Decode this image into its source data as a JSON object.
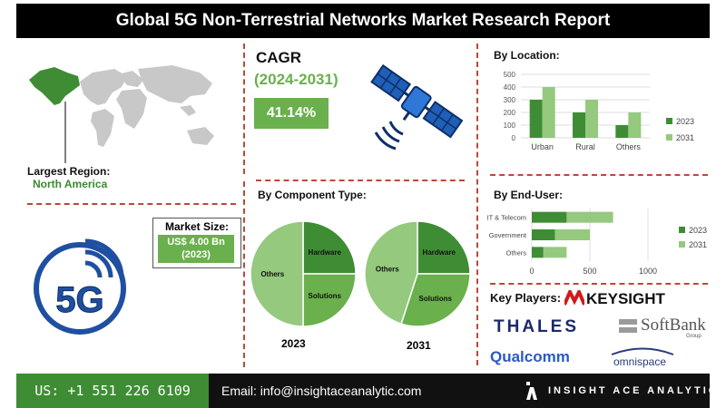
{
  "header": {
    "title": "Global 5G Non-Terrestrial Networks Market Research Report"
  },
  "region": {
    "label": "Largest Region:",
    "value": "North America"
  },
  "cagr": {
    "label": "CAGR",
    "period": "(2024-2031)",
    "value": "41.14%"
  },
  "market_size": {
    "label": "Market Size:",
    "value_line1": "US$ 4.00 Bn",
    "value_line2": "(2023)"
  },
  "fiveg_logo_text": "5G",
  "colors": {
    "dark_green": "#3e8d34",
    "light_green": "#94c97e",
    "mid_green": "#6ab04c",
    "dashed_red": "#b84a3a"
  },
  "chart_data": [
    {
      "type": "bar",
      "title": "By Location:",
      "categories": [
        "Urban",
        "Rural",
        "Others"
      ],
      "series": [
        {
          "name": "2023",
          "values": [
            300,
            200,
            100
          ]
        },
        {
          "name": "2031",
          "values": [
            400,
            300,
            200
          ]
        }
      ],
      "ylim": [
        0,
        500
      ],
      "yticks": [
        "0",
        "100",
        "200",
        "300",
        "400",
        "500"
      ],
      "legend": "right"
    },
    {
      "type": "bar",
      "orientation": "horizontal",
      "title": "By End-User:",
      "categories": [
        "IT & Telecom",
        "Government",
        "Others"
      ],
      "series": [
        {
          "name": "2023",
          "values": [
            300,
            200,
            100
          ]
        },
        {
          "name": "2031",
          "values": [
            700,
            500,
            300
          ]
        }
      ],
      "xlim": [
        0,
        1000
      ],
      "xticks": [
        "0",
        "500",
        "1000"
      ],
      "legend": "right"
    },
    {
      "type": "pie",
      "title": "By Component Type:",
      "year": "2023",
      "slices": [
        {
          "label": "Hardware",
          "value": 25
        },
        {
          "label": "Solutions",
          "value": 25
        },
        {
          "label": "Others",
          "value": 50
        }
      ]
    },
    {
      "type": "pie",
      "year": "2031",
      "slices": [
        {
          "label": "Hardware",
          "value": 25
        },
        {
          "label": "Solutions",
          "value": 30
        },
        {
          "label": "Others",
          "value": 45
        }
      ]
    }
  ],
  "key_players": {
    "label": "Key Players:",
    "names": [
      "KEYSIGHT",
      "THALES",
      "SoftBank",
      "Group",
      "Qualcomm",
      "omnispace"
    ]
  },
  "footer": {
    "phone": "US: +1 551 226 6109",
    "email": "Email: info@insightaceanalytic.com",
    "brand": "INSIGHT ACE ANALYTIC"
  }
}
